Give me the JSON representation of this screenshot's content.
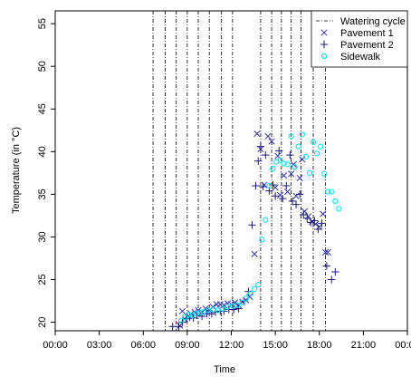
{
  "chart_data": {
    "type": "scatter",
    "title": "",
    "xlabel": "Time",
    "ylabel": "Temperature (in °C)",
    "xlim": [
      "00:00",
      "24:00"
    ],
    "ylim": [
      19,
      56.5
    ],
    "x_ticks": [
      "00:00",
      "03:00",
      "06:00",
      "09:00",
      "12:00",
      "15:00",
      "18:00",
      "21:00",
      "00:00"
    ],
    "y_ticks": [
      20,
      25,
      30,
      35,
      40,
      45,
      50,
      55
    ],
    "grid": false,
    "legend_position": "top-right",
    "watering_cycle": {
      "name": "Watering cycle",
      "times": [
        "06:40",
        "07:30",
        "08:15",
        "09:00",
        "09:45",
        "10:30",
        "11:20",
        "12:05",
        "14:00",
        "14:45",
        "15:25",
        "16:05",
        "16:45",
        "17:35",
        "18:25"
      ]
    },
    "series": [
      {
        "name": "Pavement 1",
        "marker": "x",
        "color": "#3333aa",
        "points": [
          [
            "08:30",
            19.6
          ],
          [
            "08:40",
            21.3
          ],
          [
            "08:50",
            20.4
          ],
          [
            "09:05",
            20.7
          ],
          [
            "09:15",
            21.0
          ],
          [
            "09:30",
            21.2
          ],
          [
            "09:45",
            21.4
          ],
          [
            "10:00",
            21.2
          ],
          [
            "10:15",
            21.6
          ],
          [
            "10:30",
            21.4
          ],
          [
            "10:45",
            21.8
          ],
          [
            "11:00",
            22.1
          ],
          [
            "11:15",
            22.1
          ],
          [
            "11:30",
            22.0
          ],
          [
            "11:45",
            22.2
          ],
          [
            "12:00",
            22.1
          ],
          [
            "12:15",
            22.3
          ],
          [
            "12:30",
            22.0
          ],
          [
            "12:45",
            22.4
          ],
          [
            "13:00",
            22.6
          ],
          [
            "13:15",
            23.0
          ],
          [
            "13:35",
            28.0
          ],
          [
            "13:45",
            42.1
          ],
          [
            "14:00",
            40.3
          ],
          [
            "14:15",
            36.1
          ],
          [
            "14:30",
            41.8
          ],
          [
            "14:45",
            41.2
          ],
          [
            "15:00",
            35.8
          ],
          [
            "15:10",
            39.5
          ],
          [
            "15:20",
            34.9
          ],
          [
            "15:35",
            37.2
          ],
          [
            "15:50",
            35.3
          ],
          [
            "16:05",
            37.4
          ],
          [
            "16:15",
            38.5
          ],
          [
            "16:25",
            34.8
          ],
          [
            "16:40",
            36.9
          ],
          [
            "16:50",
            39.1
          ],
          [
            "17:00",
            33.0
          ],
          [
            "17:15",
            32.4
          ],
          [
            "17:30",
            31.8
          ],
          [
            "17:45",
            31.5
          ],
          [
            "18:00",
            31.2
          ],
          [
            "18:15",
            32.7
          ],
          [
            "18:25",
            28.2
          ],
          [
            "18:35",
            28.2
          ]
        ]
      },
      {
        "name": "Pavement 2",
        "marker": "+",
        "color": "#1a1a7a",
        "points": [
          [
            "08:00",
            19.5
          ],
          [
            "08:25",
            19.5
          ],
          [
            "08:40",
            20.0
          ],
          [
            "08:55",
            20.4
          ],
          [
            "09:10",
            20.6
          ],
          [
            "09:25",
            20.5
          ],
          [
            "09:40",
            20.8
          ],
          [
            "10:00",
            20.7
          ],
          [
            "10:20",
            21.0
          ],
          [
            "10:40",
            21.0
          ],
          [
            "10:55",
            21.2
          ],
          [
            "11:15",
            21.3
          ],
          [
            "11:30",
            21.3
          ],
          [
            "11:50",
            21.5
          ],
          [
            "12:10",
            21.5
          ],
          [
            "12:30",
            21.6
          ],
          [
            "12:50",
            22.5
          ],
          [
            "13:10",
            23.6
          ],
          [
            "13:25",
            31.4
          ],
          [
            "13:40",
            36.0
          ],
          [
            "13:50",
            38.9
          ],
          [
            "14:00",
            40.6
          ],
          [
            "14:10",
            35.9
          ],
          [
            "14:20",
            39.6
          ],
          [
            "14:35",
            35.4
          ],
          [
            "14:50",
            36.1
          ],
          [
            "15:00",
            34.8
          ],
          [
            "15:15",
            40.1
          ],
          [
            "15:30",
            34.5
          ],
          [
            "15:45",
            36.0
          ],
          [
            "16:00",
            39.6
          ],
          [
            "16:10",
            34.2
          ],
          [
            "16:25",
            33.8
          ],
          [
            "16:40",
            35.0
          ],
          [
            "16:55",
            32.6
          ],
          [
            "17:10",
            32.2
          ],
          [
            "17:25",
            31.7
          ],
          [
            "17:40",
            31.9
          ],
          [
            "17:55",
            30.9
          ],
          [
            "18:10",
            31.6
          ],
          [
            "18:30",
            26.6
          ],
          [
            "18:50",
            25.0
          ],
          [
            "19:05",
            25.9
          ]
        ]
      },
      {
        "name": "Sidewalk",
        "marker": "o",
        "color": "#00e5ee",
        "points": [
          [
            "08:35",
            20.2
          ],
          [
            "08:50",
            20.6
          ],
          [
            "09:05",
            20.9
          ],
          [
            "09:20",
            20.8
          ],
          [
            "09:35",
            21.0
          ],
          [
            "09:50",
            21.1
          ],
          [
            "10:05",
            21.2
          ],
          [
            "10:25",
            21.4
          ],
          [
            "10:45",
            21.5
          ],
          [
            "11:05",
            21.4
          ],
          [
            "11:25",
            21.6
          ],
          [
            "11:45",
            21.8
          ],
          [
            "12:05",
            21.9
          ],
          [
            "12:25",
            22.0
          ],
          [
            "12:45",
            22.3
          ],
          [
            "13:00",
            22.8
          ],
          [
            "13:20",
            23.4
          ],
          [
            "13:35",
            23.9
          ],
          [
            "13:50",
            24.4
          ],
          [
            "14:05",
            29.7
          ],
          [
            "14:20",
            32.0
          ],
          [
            "14:35",
            36.0
          ],
          [
            "14:50",
            38.0
          ],
          [
            "15:05",
            38.8
          ],
          [
            "15:20",
            39.0
          ],
          [
            "15:35",
            38.6
          ],
          [
            "15:50",
            38.5
          ],
          [
            "16:05",
            41.8
          ],
          [
            "16:20",
            38.2
          ],
          [
            "16:35",
            40.6
          ],
          [
            "16:50",
            42.0
          ],
          [
            "17:05",
            39.4
          ],
          [
            "17:20",
            37.5
          ],
          [
            "17:35",
            41.1
          ],
          [
            "17:50",
            39.8
          ],
          [
            "18:05",
            40.6
          ],
          [
            "18:20",
            37.4
          ],
          [
            "18:35",
            35.3
          ],
          [
            "18:50",
            35.3
          ],
          [
            "19:05",
            34.2
          ],
          [
            "19:20",
            33.3
          ]
        ]
      }
    ]
  }
}
